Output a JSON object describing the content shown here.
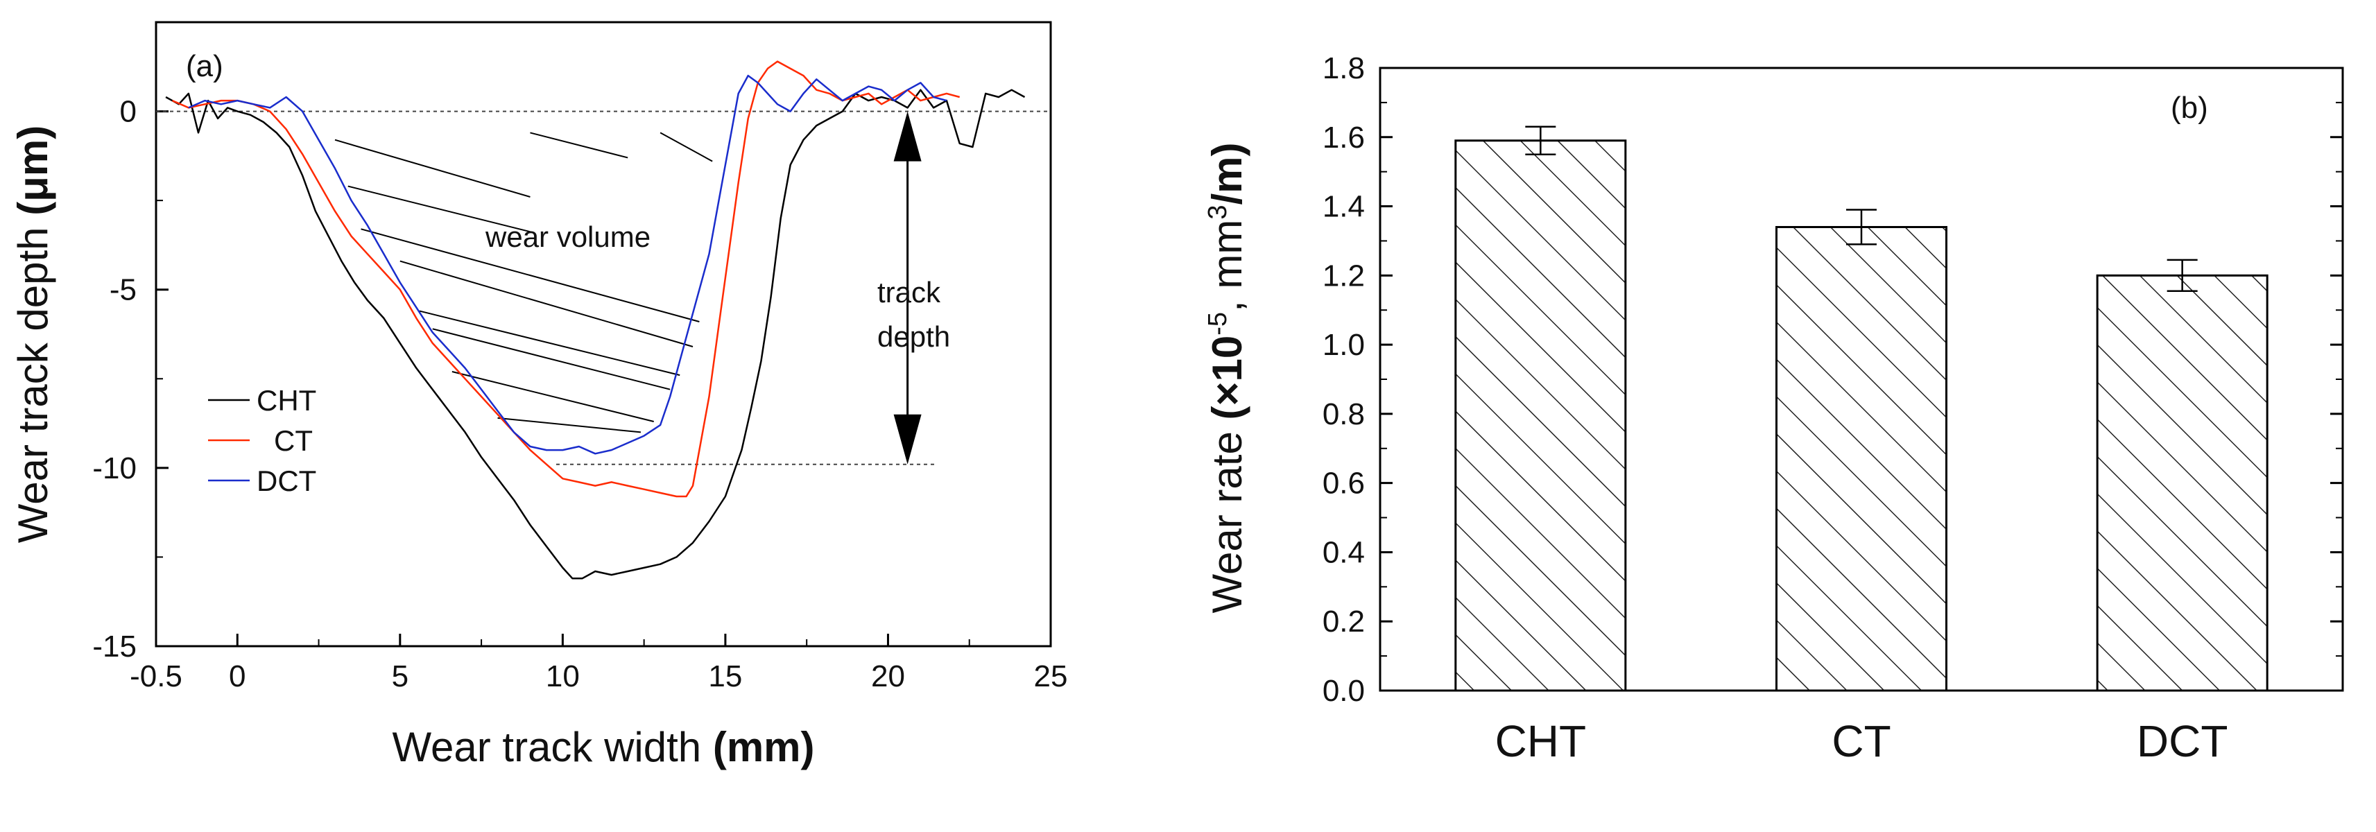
{
  "chart_data": [
    {
      "panel": "(a)",
      "type": "line",
      "xlabel_plain": "Wear track width ",
      "xlabel_bold": "(mm)",
      "ylabel_plain": "Wear track depth ",
      "ylabel_bold": "(μm)",
      "xlim": [
        -2.5,
        25
      ],
      "ylim": [
        -15,
        2.5
      ],
      "xticks": [
        -0.5,
        0,
        5,
        10,
        15,
        20,
        25
      ],
      "xtick_labels": [
        "-0.5",
        "0",
        "5",
        "10",
        "15",
        "20",
        "25"
      ],
      "xtick_positions": [
        -2.5,
        0,
        5,
        10,
        15,
        20,
        25
      ],
      "yticks": [
        0,
        -5,
        -10,
        -15
      ],
      "ytick_labels": [
        "0",
        "-5",
        "-10",
        "-15"
      ],
      "legend": [
        "CHT",
        "CT",
        "DCT"
      ],
      "annotations": {
        "wear_volume": "wear volume",
        "track_depth_1": "track",
        "track_depth_2": "depth"
      },
      "reference_lines": {
        "y_zero": 0,
        "y_depth": -9.9,
        "arrow_x": 20.6
      },
      "series": [
        {
          "name": "CHT",
          "color": "#000000",
          "x": [
            -2.2,
            -1.8,
            -1.5,
            -1.2,
            -0.9,
            -0.6,
            -0.3,
            0,
            0.4,
            0.8,
            1.2,
            1.6,
            2.0,
            2.4,
            2.8,
            3.2,
            3.6,
            4.0,
            4.5,
            5.0,
            5.5,
            6.0,
            6.5,
            7.0,
            7.5,
            8.0,
            8.5,
            9.0,
            9.5,
            10.0,
            10.3,
            10.6,
            11.0,
            11.5,
            12.0,
            12.5,
            13.0,
            13.5,
            14.0,
            14.5,
            15.0,
            15.5,
            15.8,
            16.1,
            16.4,
            16.7,
            17.0,
            17.4,
            17.8,
            18.2,
            18.6,
            19.0,
            19.4,
            19.8,
            20.2,
            20.6,
            21.0,
            21.4,
            21.8,
            22.2,
            22.6,
            23.0,
            23.4,
            23.8,
            24.2
          ],
          "y": [
            0.4,
            0.2,
            0.5,
            -0.6,
            0.3,
            -0.2,
            0.1,
            0,
            -0.1,
            -0.3,
            -0.6,
            -1.0,
            -1.8,
            -2.8,
            -3.5,
            -4.2,
            -4.8,
            -5.3,
            -5.8,
            -6.5,
            -7.2,
            -7.8,
            -8.4,
            -9.0,
            -9.7,
            -10.3,
            -10.9,
            -11.6,
            -12.2,
            -12.8,
            -13.1,
            -13.1,
            -12.9,
            -13.0,
            -12.9,
            -12.8,
            -12.7,
            -12.5,
            -12.1,
            -11.5,
            -10.8,
            -9.5,
            -8.3,
            -7.0,
            -5.2,
            -3.0,
            -1.5,
            -0.8,
            -0.4,
            -0.2,
            0,
            0.5,
            0.3,
            0.4,
            0.3,
            0.1,
            0.6,
            0.1,
            0.3,
            -0.9,
            -1.0,
            0.5,
            0.4,
            0.6,
            0.4
          ]
        },
        {
          "name": "CT",
          "color": "#ff2a00",
          "x": [
            -2.0,
            -1.5,
            -1.0,
            -0.5,
            0,
            0.5,
            1.0,
            1.5,
            2.0,
            2.5,
            3.0,
            3.5,
            4.0,
            4.5,
            5.0,
            5.5,
            6.0,
            6.5,
            7.0,
            7.5,
            8.0,
            8.5,
            9.0,
            9.5,
            10.0,
            10.5,
            11.0,
            11.5,
            12.0,
            12.5,
            13.0,
            13.5,
            13.8,
            14.0,
            14.2,
            14.5,
            14.8,
            15.1,
            15.4,
            15.7,
            16.0,
            16.3,
            16.6,
            17.0,
            17.4,
            17.8,
            18.2,
            18.6,
            19.0,
            19.4,
            19.8,
            20.2,
            20.6,
            21.0,
            21.4,
            21.8,
            22.2
          ],
          "y": [
            0.3,
            0.1,
            0.2,
            0.3,
            0.3,
            0.2,
            0.0,
            -0.5,
            -1.2,
            -2.0,
            -2.8,
            -3.5,
            -4.0,
            -4.5,
            -5.0,
            -5.8,
            -6.5,
            -7.0,
            -7.5,
            -8.0,
            -8.5,
            -9.0,
            -9.5,
            -9.9,
            -10.3,
            -10.4,
            -10.5,
            -10.4,
            -10.5,
            -10.6,
            -10.7,
            -10.8,
            -10.8,
            -10.5,
            -9.5,
            -8.0,
            -6.0,
            -4.0,
            -2.0,
            -0.2,
            0.8,
            1.2,
            1.4,
            1.2,
            1.0,
            0.6,
            0.5,
            0.3,
            0.4,
            0.5,
            0.2,
            0.4,
            0.6,
            0.3,
            0.4,
            0.5,
            0.4
          ]
        },
        {
          "name": "DCT",
          "color": "#1a2dcc",
          "x": [
            -1.5,
            -1.0,
            -0.5,
            0,
            0.5,
            1.0,
            1.5,
            2.0,
            2.5,
            3.0,
            3.5,
            4.0,
            4.5,
            5.0,
            5.5,
            6.0,
            6.5,
            7.0,
            7.5,
            8.0,
            8.5,
            9.0,
            9.5,
            10.0,
            10.5,
            11.0,
            11.5,
            12.0,
            12.5,
            13.0,
            13.3,
            13.6,
            13.9,
            14.2,
            14.5,
            14.8,
            15.1,
            15.4,
            15.7,
            16.0,
            16.3,
            16.6,
            17.0,
            17.4,
            17.8,
            18.2,
            18.6,
            19.0,
            19.4,
            19.8,
            20.2,
            20.6,
            21.0,
            21.4,
            21.8
          ],
          "y": [
            0.1,
            0.3,
            0.2,
            0.3,
            0.2,
            0.1,
            0.4,
            0.0,
            -0.8,
            -1.6,
            -2.5,
            -3.2,
            -4.0,
            -4.8,
            -5.5,
            -6.2,
            -6.7,
            -7.2,
            -7.8,
            -8.4,
            -9.0,
            -9.4,
            -9.5,
            -9.5,
            -9.4,
            -9.6,
            -9.5,
            -9.3,
            -9.1,
            -8.8,
            -8.0,
            -7.0,
            -6.0,
            -5.0,
            -4.0,
            -2.5,
            -1.0,
            0.5,
            1.0,
            0.8,
            0.5,
            0.2,
            0.0,
            0.5,
            0.9,
            0.6,
            0.3,
            0.5,
            0.7,
            0.6,
            0.3,
            0.6,
            0.8,
            0.4,
            0.3
          ]
        }
      ]
    },
    {
      "panel": "(b)",
      "type": "bar",
      "categories": [
        "CHT",
        "CT",
        "DCT"
      ],
      "values": [
        1.59,
        1.34,
        1.2
      ],
      "errors": [
        0.04,
        0.05,
        0.045
      ],
      "ylabel_plain": "Wear rate ",
      "ylabel_bold_pre": "(×10",
      "ylabel_sup1": "-5",
      "ylabel_mid": ", mm",
      "ylabel_sup2": "3",
      "ylabel_post": "/m)",
      "ylim": [
        0.0,
        1.8
      ],
      "yticks": [
        0.0,
        0.2,
        0.4,
        0.6,
        0.8,
        1.0,
        1.2,
        1.4,
        1.6,
        1.8
      ],
      "ytick_labels": [
        "0.0",
        "0.2",
        "0.4",
        "0.6",
        "0.8",
        "1.0",
        "1.2",
        "1.4",
        "1.6",
        "1.8"
      ],
      "hatch": "diagonal"
    }
  ]
}
